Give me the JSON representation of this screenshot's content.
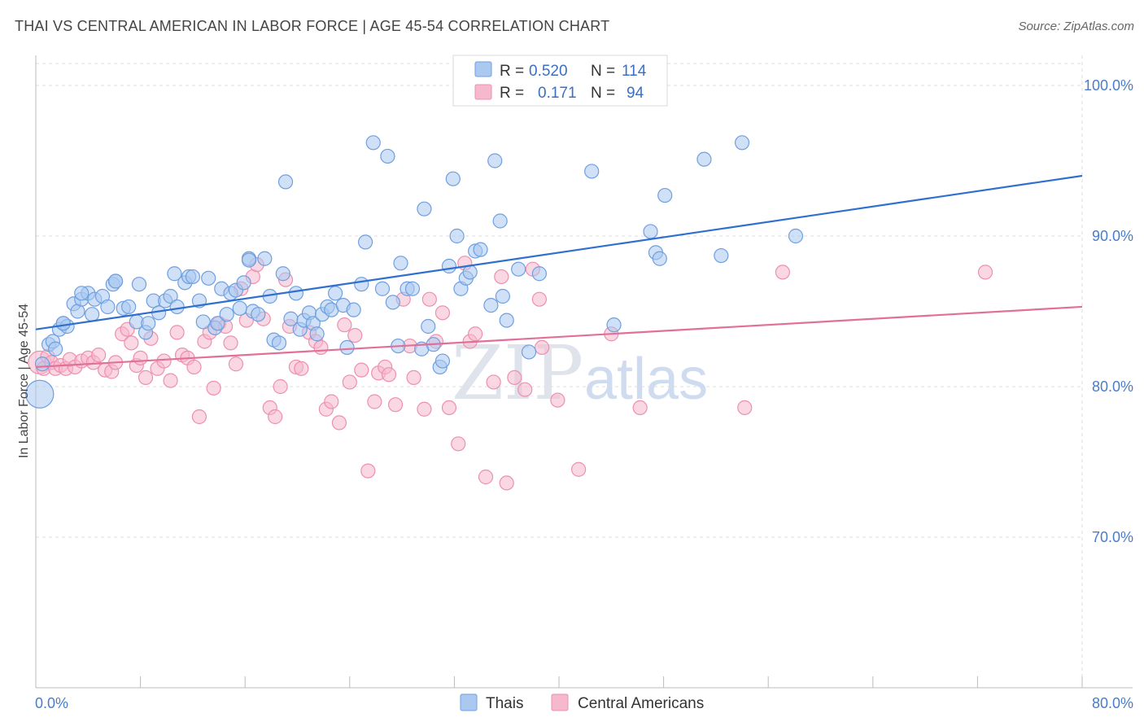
{
  "header": {
    "title": "THAI VS CENTRAL AMERICAN IN LABOR FORCE | AGE 45-54 CORRELATION CHART",
    "source": "Source: ZipAtlas.com"
  },
  "colors": {
    "thai_fill": "#aac8f0",
    "thai_stroke": "#6e9fe0",
    "thai_line": "#2f6fd0",
    "ca_fill": "#f6b8cc",
    "ca_stroke": "#ee8fae",
    "ca_line": "#e0709a",
    "grid": "#dddddd",
    "tick_label": "#4a7cc9"
  },
  "legend": {
    "rows": [
      {
        "r_label": "R =",
        "r_value": "0.520",
        "n_label": "N =",
        "n_value": "114"
      },
      {
        "r_label": "R =",
        "r_value": "0.171",
        "n_label": "N =",
        "n_value": "94"
      }
    ]
  },
  "bottom_legend": [
    "Thais",
    "Central Americans"
  ],
  "watermark": {
    "part1": "ZIP",
    "part2": "atlas"
  },
  "chart_data": {
    "type": "scatter",
    "ylabel": "In Labor Force | Age 45-54",
    "xlim": [
      0,
      80
    ],
    "ylim": [
      60,
      102
    ],
    "x_tick_labels": [
      "0.0%",
      "80.0%"
    ],
    "y_ticks": [
      70,
      80,
      90,
      100
    ],
    "y_tick_labels": [
      "70.0%",
      "80.0%",
      "90.0%",
      "100.0%"
    ],
    "series": [
      {
        "name": "Thais",
        "trend": {
          "x": [
            0,
            80
          ],
          "y": [
            83.8,
            94.0
          ]
        },
        "points": [
          [
            0.3,
            79.5
          ],
          [
            0.5,
            81.5
          ],
          [
            1.0,
            82.8
          ],
          [
            1.3,
            83.0
          ],
          [
            1.5,
            82.5
          ],
          [
            1.8,
            83.8
          ],
          [
            2.1,
            84.2
          ],
          [
            2.4,
            84.0
          ],
          [
            2.9,
            85.5
          ],
          [
            3.2,
            85.0
          ],
          [
            3.5,
            85.8
          ],
          [
            4.0,
            86.2
          ],
          [
            4.3,
            84.8
          ],
          [
            4.5,
            85.8
          ],
          [
            5.1,
            86.0
          ],
          [
            5.5,
            85.3
          ],
          [
            5.9,
            86.8
          ],
          [
            6.1,
            87.0
          ],
          [
            6.7,
            85.2
          ],
          [
            7.1,
            85.3
          ],
          [
            7.7,
            84.3
          ],
          [
            7.9,
            86.8
          ],
          [
            8.4,
            83.6
          ],
          [
            8.6,
            84.2
          ],
          [
            9.0,
            85.7
          ],
          [
            9.4,
            84.9
          ],
          [
            9.9,
            85.7
          ],
          [
            10.3,
            86.0
          ],
          [
            10.6,
            87.5
          ],
          [
            10.8,
            85.3
          ],
          [
            11.4,
            86.9
          ],
          [
            11.7,
            87.3
          ],
          [
            12.0,
            87.3
          ],
          [
            12.5,
            85.7
          ],
          [
            12.8,
            84.3
          ],
          [
            13.2,
            87.2
          ],
          [
            13.7,
            83.9
          ],
          [
            13.9,
            84.2
          ],
          [
            14.2,
            86.5
          ],
          [
            14.6,
            84.8
          ],
          [
            14.9,
            86.2
          ],
          [
            15.3,
            86.4
          ],
          [
            15.6,
            85.2
          ],
          [
            15.9,
            86.9
          ],
          [
            16.3,
            88.5
          ],
          [
            16.6,
            85.0
          ],
          [
            17.0,
            84.8
          ],
          [
            17.5,
            88.5
          ],
          [
            17.9,
            86.0
          ],
          [
            18.2,
            83.1
          ],
          [
            18.6,
            82.9
          ],
          [
            18.9,
            87.5
          ],
          [
            19.1,
            93.6
          ],
          [
            19.5,
            84.5
          ],
          [
            19.9,
            86.2
          ],
          [
            20.2,
            83.8
          ],
          [
            20.5,
            84.4
          ],
          [
            20.9,
            84.9
          ],
          [
            21.2,
            84.2
          ],
          [
            21.5,
            83.5
          ],
          [
            21.9,
            84.8
          ],
          [
            22.3,
            85.3
          ],
          [
            22.6,
            85.1
          ],
          [
            22.9,
            86.2
          ],
          [
            23.5,
            85.4
          ],
          [
            23.8,
            82.6
          ],
          [
            24.3,
            85.1
          ],
          [
            24.9,
            86.8
          ],
          [
            25.2,
            89.6
          ],
          [
            25.8,
            96.2
          ],
          [
            26.5,
            86.5
          ],
          [
            27.3,
            85.6
          ],
          [
            27.7,
            82.7
          ],
          [
            27.9,
            88.2
          ],
          [
            28.4,
            86.5
          ],
          [
            28.8,
            86.5
          ],
          [
            29.5,
            82.5
          ],
          [
            29.7,
            91.8
          ],
          [
            30.0,
            84.0
          ],
          [
            30.4,
            82.8
          ],
          [
            30.9,
            81.3
          ],
          [
            31.1,
            81.7
          ],
          [
            31.6,
            88.0
          ],
          [
            31.9,
            93.8
          ],
          [
            32.2,
            90.0
          ],
          [
            32.5,
            86.5
          ],
          [
            32.9,
            87.2
          ],
          [
            33.2,
            87.6
          ],
          [
            33.6,
            89.0
          ],
          [
            34.0,
            89.1
          ],
          [
            34.8,
            85.4
          ],
          [
            35.1,
            95.0
          ],
          [
            35.5,
            91.0
          ],
          [
            35.7,
            86.0
          ],
          [
            36.0,
            84.4
          ],
          [
            36.9,
            87.8
          ],
          [
            37.7,
            82.3
          ],
          [
            38.5,
            87.5
          ],
          [
            40.2,
            100.0
          ],
          [
            42.5,
            94.3
          ],
          [
            44.2,
            84.1
          ],
          [
            47.0,
            90.3
          ],
          [
            47.4,
            88.9
          ],
          [
            47.7,
            88.5
          ],
          [
            48.1,
            92.7
          ],
          [
            51.1,
            95.1
          ],
          [
            52.4,
            88.7
          ],
          [
            54.0,
            96.2
          ],
          [
            58.1,
            90.0
          ],
          [
            26.9,
            95.3
          ],
          [
            16.3,
            88.4
          ],
          [
            6.1,
            87.0
          ],
          [
            3.5,
            86.2
          ],
          [
            2.1,
            84.2
          ]
        ]
      },
      {
        "name": "Central Americans",
        "trend": {
          "x": [
            0,
            80
          ],
          "y": [
            81.3,
            85.3
          ]
        },
        "points": [
          [
            0.3,
            81.6
          ],
          [
            0.6,
            81.2
          ],
          [
            0.9,
            82.0
          ],
          [
            1.2,
            81.6
          ],
          [
            1.5,
            81.2
          ],
          [
            1.9,
            81.4
          ],
          [
            2.3,
            81.2
          ],
          [
            2.6,
            81.8
          ],
          [
            3.0,
            81.3
          ],
          [
            3.5,
            81.7
          ],
          [
            4.0,
            81.9
          ],
          [
            4.4,
            81.6
          ],
          [
            4.8,
            82.1
          ],
          [
            5.3,
            81.1
          ],
          [
            5.8,
            81.0
          ],
          [
            6.1,
            81.6
          ],
          [
            6.6,
            83.5
          ],
          [
            7.0,
            83.8
          ],
          [
            7.3,
            82.9
          ],
          [
            7.7,
            81.4
          ],
          [
            8.0,
            81.9
          ],
          [
            8.4,
            80.6
          ],
          [
            8.8,
            83.2
          ],
          [
            9.3,
            81.2
          ],
          [
            9.8,
            81.7
          ],
          [
            10.3,
            80.4
          ],
          [
            10.8,
            83.6
          ],
          [
            11.2,
            82.1
          ],
          [
            11.6,
            81.9
          ],
          [
            12.1,
            81.3
          ],
          [
            12.5,
            78.0
          ],
          [
            12.9,
            83.0
          ],
          [
            13.3,
            83.6
          ],
          [
            13.6,
            79.9
          ],
          [
            14.0,
            84.2
          ],
          [
            14.5,
            84.0
          ],
          [
            14.9,
            82.9
          ],
          [
            15.3,
            81.5
          ],
          [
            15.7,
            86.5
          ],
          [
            16.1,
            84.4
          ],
          [
            16.6,
            87.3
          ],
          [
            16.9,
            88.1
          ],
          [
            17.4,
            84.5
          ],
          [
            17.9,
            78.6
          ],
          [
            18.3,
            78.0
          ],
          [
            18.7,
            80.0
          ],
          [
            19.1,
            87.1
          ],
          [
            19.4,
            84.0
          ],
          [
            19.9,
            81.3
          ],
          [
            20.3,
            81.2
          ],
          [
            20.9,
            83.6
          ],
          [
            21.4,
            83.0
          ],
          [
            21.8,
            82.6
          ],
          [
            22.2,
            78.5
          ],
          [
            22.6,
            79.0
          ],
          [
            23.2,
            77.6
          ],
          [
            23.6,
            84.1
          ],
          [
            24.0,
            80.3
          ],
          [
            24.4,
            83.4
          ],
          [
            24.9,
            81.1
          ],
          [
            25.4,
            74.4
          ],
          [
            25.9,
            79.0
          ],
          [
            26.2,
            80.9
          ],
          [
            26.7,
            81.3
          ],
          [
            27.0,
            80.8
          ],
          [
            27.5,
            78.8
          ],
          [
            28.1,
            85.8
          ],
          [
            28.6,
            82.7
          ],
          [
            28.9,
            80.6
          ],
          [
            29.7,
            78.5
          ],
          [
            30.1,
            85.8
          ],
          [
            30.6,
            83.0
          ],
          [
            31.1,
            84.9
          ],
          [
            31.6,
            78.6
          ],
          [
            32.3,
            76.2
          ],
          [
            32.8,
            88.2
          ],
          [
            33.2,
            83.0
          ],
          [
            33.6,
            83.5
          ],
          [
            34.4,
            74.0
          ],
          [
            35.0,
            80.3
          ],
          [
            35.6,
            87.3
          ],
          [
            36.0,
            73.6
          ],
          [
            36.6,
            80.6
          ],
          [
            37.4,
            79.8
          ],
          [
            38.0,
            87.8
          ],
          [
            38.5,
            85.8
          ],
          [
            38.7,
            82.6
          ],
          [
            39.9,
            79.1
          ],
          [
            41.5,
            74.5
          ],
          [
            44.0,
            83.5
          ],
          [
            46.2,
            78.6
          ],
          [
            54.2,
            78.6
          ],
          [
            57.1,
            87.6
          ],
          [
            72.6,
            87.6
          ]
        ]
      }
    ]
  }
}
